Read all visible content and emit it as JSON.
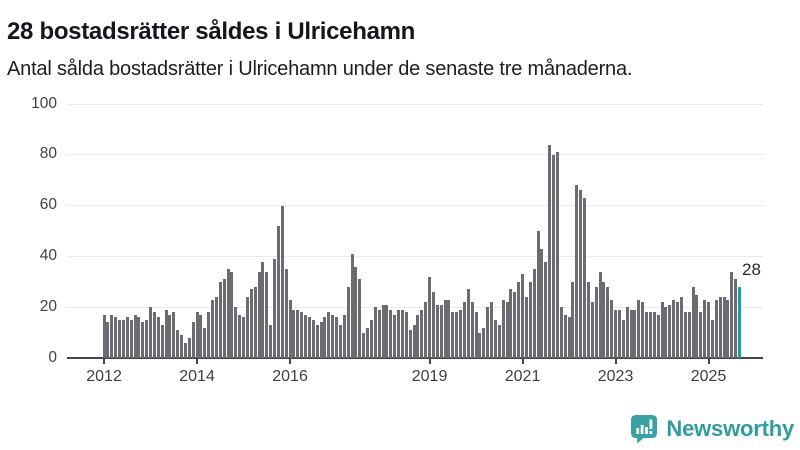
{
  "header": {
    "title": "28 bostadsrätter såldes i Ulricehamn",
    "subtitle": "Antal sålda bostadsrätter i Ulricehamn under de senaste tre månaderna."
  },
  "chart_data": {
    "type": "bar",
    "title": "28 bostadsrätter såldes i Ulricehamn",
    "subtitle": "Antal sålda bostadsrätter i Ulricehamn under de senaste tre månaderna.",
    "x_unit": "month",
    "x_start": "2012-01",
    "x_end": "2025-09",
    "ylim": [
      0,
      100
    ],
    "yticks": [
      0,
      20,
      40,
      60,
      80,
      100
    ],
    "grid": true,
    "legend": "none",
    "bar_color": "#6b6b71",
    "highlight_color": "#14a0a7",
    "xticks": [
      {
        "label": "2012",
        "month_index": 0
      },
      {
        "label": "2014",
        "month_index": 24
      },
      {
        "label": "2016",
        "month_index": 48
      },
      {
        "label": "2019",
        "month_index": 84
      },
      {
        "label": "2021",
        "month_index": 108
      },
      {
        "label": "2023",
        "month_index": 132
      },
      {
        "label": "2025",
        "month_index": 156
      }
    ],
    "values": [
      17,
      14,
      17,
      16,
      15,
      15,
      16,
      15,
      17,
      16,
      14,
      15,
      20,
      18,
      16,
      13,
      19,
      17,
      18,
      11,
      9,
      6,
      8,
      14,
      18,
      17,
      12,
      18,
      23,
      24,
      30,
      31,
      35,
      34,
      20,
      17,
      16,
      24,
      27,
      28,
      34,
      38,
      34,
      13,
      39,
      52,
      60,
      35,
      23,
      19,
      19,
      18,
      17,
      16,
      15,
      13,
      14,
      16,
      18,
      17,
      16,
      13,
      17,
      28,
      41,
      36,
      31,
      10,
      12,
      15,
      20,
      19,
      21,
      21,
      19,
      17,
      19,
      19,
      18,
      11,
      13,
      17,
      19,
      22,
      32,
      26,
      21,
      21,
      23,
      23,
      18,
      18,
      19,
      22,
      27,
      22,
      18,
      10,
      12,
      20,
      22,
      15,
      13,
      23,
      22,
      27,
      26,
      30,
      33,
      24,
      30,
      35,
      50,
      43,
      38,
      84,
      80,
      81,
      20,
      17,
      16,
      30,
      68,
      66,
      63,
      30,
      22,
      28,
      34,
      30,
      28,
      23,
      19,
      19,
      15,
      20,
      19,
      19,
      23,
      22,
      18,
      18,
      18,
      17,
      22,
      20,
      21,
      23,
      22,
      24,
      18,
      18,
      28,
      25,
      18,
      23,
      22,
      15,
      23,
      24,
      24,
      23,
      34,
      31,
      28
    ],
    "highlight": {
      "index": 164,
      "value": 28,
      "label": "28"
    }
  },
  "footer": {
    "brand": "Newsworthy",
    "brand_color": "#2f9d9e"
  }
}
